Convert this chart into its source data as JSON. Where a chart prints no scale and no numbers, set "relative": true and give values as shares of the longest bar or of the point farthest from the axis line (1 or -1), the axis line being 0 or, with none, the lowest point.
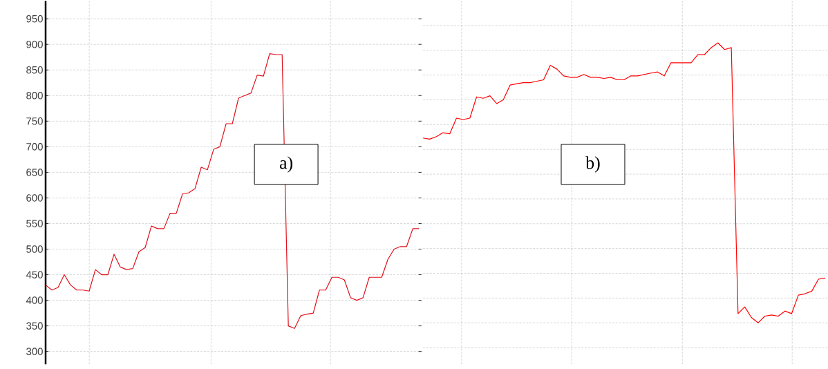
{
  "chart_data": [
    {
      "type": "line",
      "annotations": [
        "a)"
      ],
      "categories": [
        null,
        null,
        null,
        null,
        null,
        null,
        null,
        null,
        null,
        null,
        null,
        null,
        null,
        null,
        null,
        null,
        null,
        null,
        null,
        null,
        null,
        null,
        null,
        null,
        null,
        null,
        null,
        null,
        null,
        null,
        null,
        null,
        null,
        null,
        null,
        null,
        null,
        null,
        null,
        null,
        null,
        null,
        null,
        null,
        null,
        null,
        null,
        null,
        null,
        null,
        null,
        null,
        null,
        null,
        null,
        null,
        null,
        null,
        null,
        null,
        null
      ],
      "series": [
        {
          "color": "#e0101a",
          "values": [
            430,
            420,
            425,
            450,
            430,
            420,
            420,
            418,
            460,
            450,
            450,
            490,
            465,
            460,
            462,
            495,
            503,
            545,
            540,
            540,
            570,
            570,
            608,
            610,
            618,
            660,
            655,
            695,
            700,
            745,
            745,
            795,
            800,
            805,
            840,
            838,
            882,
            880,
            880,
            350,
            345,
            370,
            373,
            375,
            420,
            420,
            445,
            445,
            440,
            405,
            400,
            405,
            445,
            445,
            445,
            480,
            500,
            505,
            505,
            540,
            540
          ]
        }
      ],
      "ylim": [
        275,
        985
      ],
      "yticks": [
        300,
        350,
        400,
        450,
        500,
        550,
        600,
        650,
        700,
        750,
        800,
        850,
        900,
        950
      ],
      "grid": true,
      "tick_labels": "y"
    },
    {
      "type": "line",
      "relative": true,
      "annotations": [
        "b)"
      ],
      "categories": [
        null,
        null,
        null,
        null,
        null,
        null,
        null,
        null,
        null,
        null,
        null,
        null,
        null,
        null,
        null,
        null,
        null,
        null,
        null,
        null,
        null,
        null,
        null,
        null,
        null,
        null,
        null,
        null,
        null,
        null,
        null,
        null,
        null,
        null,
        null,
        null,
        null,
        null,
        null,
        null,
        null,
        null,
        null,
        null,
        null,
        null,
        null,
        null,
        null,
        null,
        null,
        null,
        null,
        null,
        null,
        null,
        null,
        null,
        null,
        null,
        null
      ],
      "series": [
        {
          "color": "#ff0000",
          "values": [
            0.66,
            0.656,
            0.665,
            0.679,
            0.675,
            0.731,
            0.726,
            0.731,
            0.807,
            0.802,
            0.811,
            0.783,
            0.797,
            0.849,
            0.854,
            0.858,
            0.858,
            0.863,
            0.868,
            0.92,
            0.906,
            0.882,
            0.877,
            0.877,
            0.887,
            0.877,
            0.877,
            0.873,
            0.877,
            0.868,
            0.868,
            0.882,
            0.882,
            0.887,
            0.892,
            0.896,
            0.882,
            0.929,
            0.929,
            0.929,
            0.929,
            0.958,
            0.958,
            0.983,
            1.0,
            0.976,
            0.983,
            0.033,
            0.057,
            0.019,
            0,
            0.024,
            0.028,
            0.024,
            0.042,
            0.033,
            0.099,
            0.104,
            0.113,
            0.156,
            0.16
          ]
        }
      ],
      "grid": true,
      "tick_labels": false
    }
  ]
}
